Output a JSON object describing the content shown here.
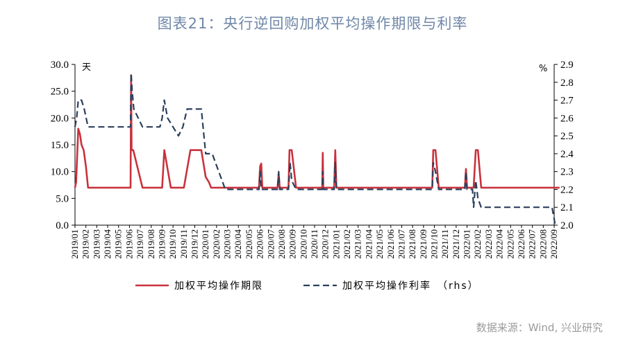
{
  "title": "图表21：央行逆回购加权平均操作期限与利率",
  "source": "数据来源：Wind, 兴业研究",
  "chart_data": {
    "type": "line",
    "left_unit": "天",
    "right_unit": "%",
    "ylim": [
      0,
      30
    ],
    "y2lim": [
      2.0,
      2.9
    ],
    "yticks": [
      "0.0",
      "5.0",
      "10.0",
      "15.0",
      "20.0",
      "25.0",
      "30.0"
    ],
    "y2ticks": [
      "2.0",
      "2.1",
      "2.2",
      "2.3",
      "2.4",
      "2.5",
      "2.6",
      "2.7",
      "2.8",
      "2.9"
    ],
    "categories": [
      "2019/01",
      "2019/02",
      "2019/03",
      "2019/04",
      "2019/05",
      "2019/06",
      "2019/07",
      "2019/08",
      "2019/09",
      "2019/10",
      "2019/11",
      "2019/12",
      "2020/01",
      "2020/02",
      "2020/03",
      "2020/04",
      "2020/05",
      "2020/06",
      "2020/07",
      "2020/08",
      "2020/09",
      "2020/10",
      "2020/11",
      "2020/12",
      "2021/01",
      "2021/02",
      "2021/03",
      "2021/04",
      "2021/05",
      "2021/06",
      "2021/07",
      "2021/08",
      "2021/09",
      "2021/10",
      "2021/11",
      "2021/12",
      "2022/01",
      "2022/02",
      "2022/03",
      "2022/04",
      "2022/05",
      "2022/06",
      "2022/07",
      "2022/08",
      "2022/09"
    ],
    "series": [
      {
        "name": "加权平均操作期限",
        "axis": "left",
        "color": "#c8323c",
        "style": "solid",
        "points": [
          [
            0.0,
            7
          ],
          [
            0.1,
            8
          ],
          [
            0.3,
            18
          ],
          [
            0.45,
            17
          ],
          [
            0.6,
            15
          ],
          [
            0.8,
            14
          ],
          [
            1.0,
            11
          ],
          [
            1.2,
            7
          ],
          [
            1.5,
            7
          ],
          [
            4.0,
            7
          ],
          [
            5.1,
            7
          ],
          [
            5.15,
            28
          ],
          [
            5.2,
            14
          ],
          [
            5.35,
            14
          ],
          [
            6.2,
            7
          ],
          [
            8.0,
            7
          ],
          [
            8.2,
            14
          ],
          [
            8.8,
            7
          ],
          [
            10.0,
            7
          ],
          [
            10.6,
            14
          ],
          [
            11.6,
            14
          ],
          [
            12.0,
            9
          ],
          [
            12.3,
            8
          ],
          [
            12.5,
            7
          ],
          [
            16.9,
            7
          ],
          [
            17.0,
            11
          ],
          [
            17.1,
            11.5
          ],
          [
            17.2,
            7
          ],
          [
            18.6,
            7
          ],
          [
            18.7,
            9.7
          ],
          [
            18.8,
            7
          ],
          [
            19.6,
            7
          ],
          [
            19.7,
            14
          ],
          [
            19.9,
            14
          ],
          [
            20.3,
            7
          ],
          [
            22.7,
            7
          ],
          [
            22.75,
            13.5
          ],
          [
            22.8,
            7
          ],
          [
            23.8,
            7
          ],
          [
            23.9,
            14
          ],
          [
            24.0,
            7
          ],
          [
            32.8,
            7
          ],
          [
            32.9,
            14
          ],
          [
            33.1,
            14
          ],
          [
            33.4,
            7
          ],
          [
            35.8,
            7
          ],
          [
            35.9,
            10.5
          ],
          [
            36.0,
            7
          ],
          [
            36.6,
            7
          ],
          [
            36.8,
            14
          ],
          [
            37.0,
            14
          ],
          [
            37.3,
            7
          ],
          [
            44.5,
            7
          ]
        ]
      },
      {
        "name": "加权平均操作利率　（rhs）",
        "axis": "right",
        "color": "#2b3f5c",
        "style": "dashed",
        "points": [
          [
            0.0,
            2.55
          ],
          [
            0.15,
            2.6
          ],
          [
            0.3,
            2.7
          ],
          [
            0.6,
            2.7
          ],
          [
            0.85,
            2.65
          ],
          [
            1.2,
            2.55
          ],
          [
            5.1,
            2.55
          ],
          [
            5.15,
            2.85
          ],
          [
            5.25,
            2.75
          ],
          [
            5.4,
            2.65
          ],
          [
            5.8,
            2.6
          ],
          [
            6.2,
            2.55
          ],
          [
            7.8,
            2.55
          ],
          [
            8.0,
            2.6
          ],
          [
            8.2,
            2.7
          ],
          [
            8.5,
            2.6
          ],
          [
            9.0,
            2.55
          ],
          [
            9.5,
            2.5
          ],
          [
            9.9,
            2.55
          ],
          [
            10.3,
            2.65
          ],
          [
            11.0,
            2.65
          ],
          [
            11.6,
            2.65
          ],
          [
            12.0,
            2.4
          ],
          [
            12.6,
            2.4
          ],
          [
            13.2,
            2.3
          ],
          [
            13.8,
            2.2
          ],
          [
            16.9,
            2.2
          ],
          [
            17.0,
            2.3
          ],
          [
            17.1,
            2.2
          ],
          [
            18.6,
            2.2
          ],
          [
            18.7,
            2.3
          ],
          [
            18.8,
            2.2
          ],
          [
            19.6,
            2.2
          ],
          [
            19.75,
            2.35
          ],
          [
            19.9,
            2.25
          ],
          [
            20.3,
            2.2
          ],
          [
            22.7,
            2.2
          ],
          [
            22.75,
            2.3
          ],
          [
            22.8,
            2.2
          ],
          [
            23.8,
            2.2
          ],
          [
            23.9,
            2.35
          ],
          [
            24.0,
            2.2
          ],
          [
            32.8,
            2.2
          ],
          [
            32.9,
            2.35
          ],
          [
            33.1,
            2.3
          ],
          [
            33.4,
            2.2
          ],
          [
            35.8,
            2.2
          ],
          [
            35.9,
            2.3
          ],
          [
            36.0,
            2.2
          ],
          [
            36.5,
            2.2
          ],
          [
            36.6,
            2.1
          ],
          [
            36.8,
            2.25
          ],
          [
            37.0,
            2.15
          ],
          [
            37.3,
            2.1
          ],
          [
            43.8,
            2.1
          ],
          [
            44.1,
            2.0
          ]
        ]
      }
    ],
    "legend_position": "bottom",
    "grid": false
  }
}
